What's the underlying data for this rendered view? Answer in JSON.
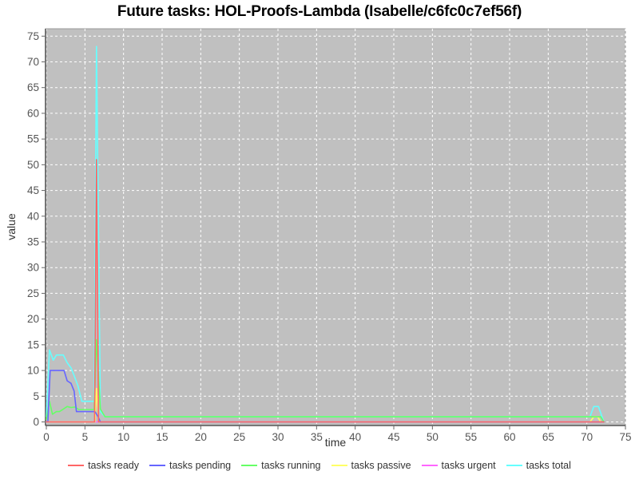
{
  "chart_data": {
    "type": "line",
    "title": "Future tasks: HOL-Proofs-Lambda (Isabelle/c6fc0c7ef56f)",
    "xlabel": "time",
    "ylabel": "value",
    "xlim": [
      0,
      75
    ],
    "ylim": [
      0,
      75
    ],
    "xticks": [
      0,
      5,
      10,
      15,
      20,
      25,
      30,
      35,
      40,
      45,
      50,
      55,
      60,
      65,
      70,
      75
    ],
    "yticks": [
      0,
      5,
      10,
      15,
      20,
      25,
      30,
      35,
      40,
      45,
      50,
      55,
      60,
      65,
      70,
      75
    ],
    "grid": true,
    "plot_bg": "#c0c0c0",
    "grid_color": "#ffffff",
    "axis_text_color": "#555555",
    "legend_position": "bottom",
    "series": [
      {
        "name": "tasks ready",
        "color": "#ff6666",
        "z": 6,
        "points": [
          [
            0,
            0
          ],
          [
            6.25,
            0
          ],
          [
            6.5,
            51
          ],
          [
            6.75,
            0
          ],
          [
            72.2,
            0
          ]
        ]
      },
      {
        "name": "tasks pending",
        "color": "#6666ff",
        "z": 5,
        "points": [
          [
            0,
            0
          ],
          [
            0.2,
            0
          ],
          [
            0.5,
            10
          ],
          [
            2.3,
            10
          ],
          [
            2.7,
            8
          ],
          [
            3.2,
            7.5
          ],
          [
            3.6,
            6
          ],
          [
            3.9,
            2
          ],
          [
            6.3,
            2
          ],
          [
            6.7,
            1
          ],
          [
            7.0,
            0
          ],
          [
            72.2,
            0
          ]
        ]
      },
      {
        "name": "tasks running",
        "color": "#66ff66",
        "z": 4,
        "points": [
          [
            0,
            0.5
          ],
          [
            0.4,
            4
          ],
          [
            0.8,
            1.5
          ],
          [
            1.3,
            2
          ],
          [
            1.7,
            2
          ],
          [
            2.2,
            2.5
          ],
          [
            2.7,
            3
          ],
          [
            3.2,
            2.8
          ],
          [
            3.7,
            2.9
          ],
          [
            4.2,
            2.4
          ],
          [
            6.2,
            2.4
          ],
          [
            6.5,
            16
          ],
          [
            7.0,
            2.5
          ],
          [
            7.6,
            1
          ],
          [
            71.8,
            1
          ],
          [
            72.2,
            0
          ]
        ]
      },
      {
        "name": "tasks passive",
        "color": "#ffff66",
        "z": 3,
        "points": [
          [
            0,
            0
          ],
          [
            6.3,
            0
          ],
          [
            6.5,
            6.5
          ],
          [
            6.8,
            0
          ],
          [
            70.4,
            0
          ],
          [
            70.9,
            1
          ],
          [
            71.4,
            1
          ],
          [
            71.8,
            0
          ],
          [
            72.2,
            0
          ]
        ]
      },
      {
        "name": "tasks urgent",
        "color": "#ff66ff",
        "z": 2,
        "points": [
          [
            0,
            0
          ],
          [
            72.2,
            0
          ]
        ]
      },
      {
        "name": "tasks total",
        "color": "#66ffff",
        "z": 1,
        "points": [
          [
            0,
            1
          ],
          [
            0.4,
            14
          ],
          [
            0.9,
            12
          ],
          [
            1.3,
            13
          ],
          [
            2.2,
            13
          ],
          [
            2.7,
            11.5
          ],
          [
            3.2,
            10.5
          ],
          [
            3.6,
            9
          ],
          [
            4.1,
            7
          ],
          [
            4.6,
            4
          ],
          [
            6.2,
            4
          ],
          [
            6.5,
            73
          ],
          [
            7.0,
            2
          ],
          [
            7.6,
            1
          ],
          [
            70.4,
            1
          ],
          [
            70.9,
            3
          ],
          [
            71.5,
            3
          ],
          [
            72.2,
            0
          ]
        ]
      }
    ]
  }
}
